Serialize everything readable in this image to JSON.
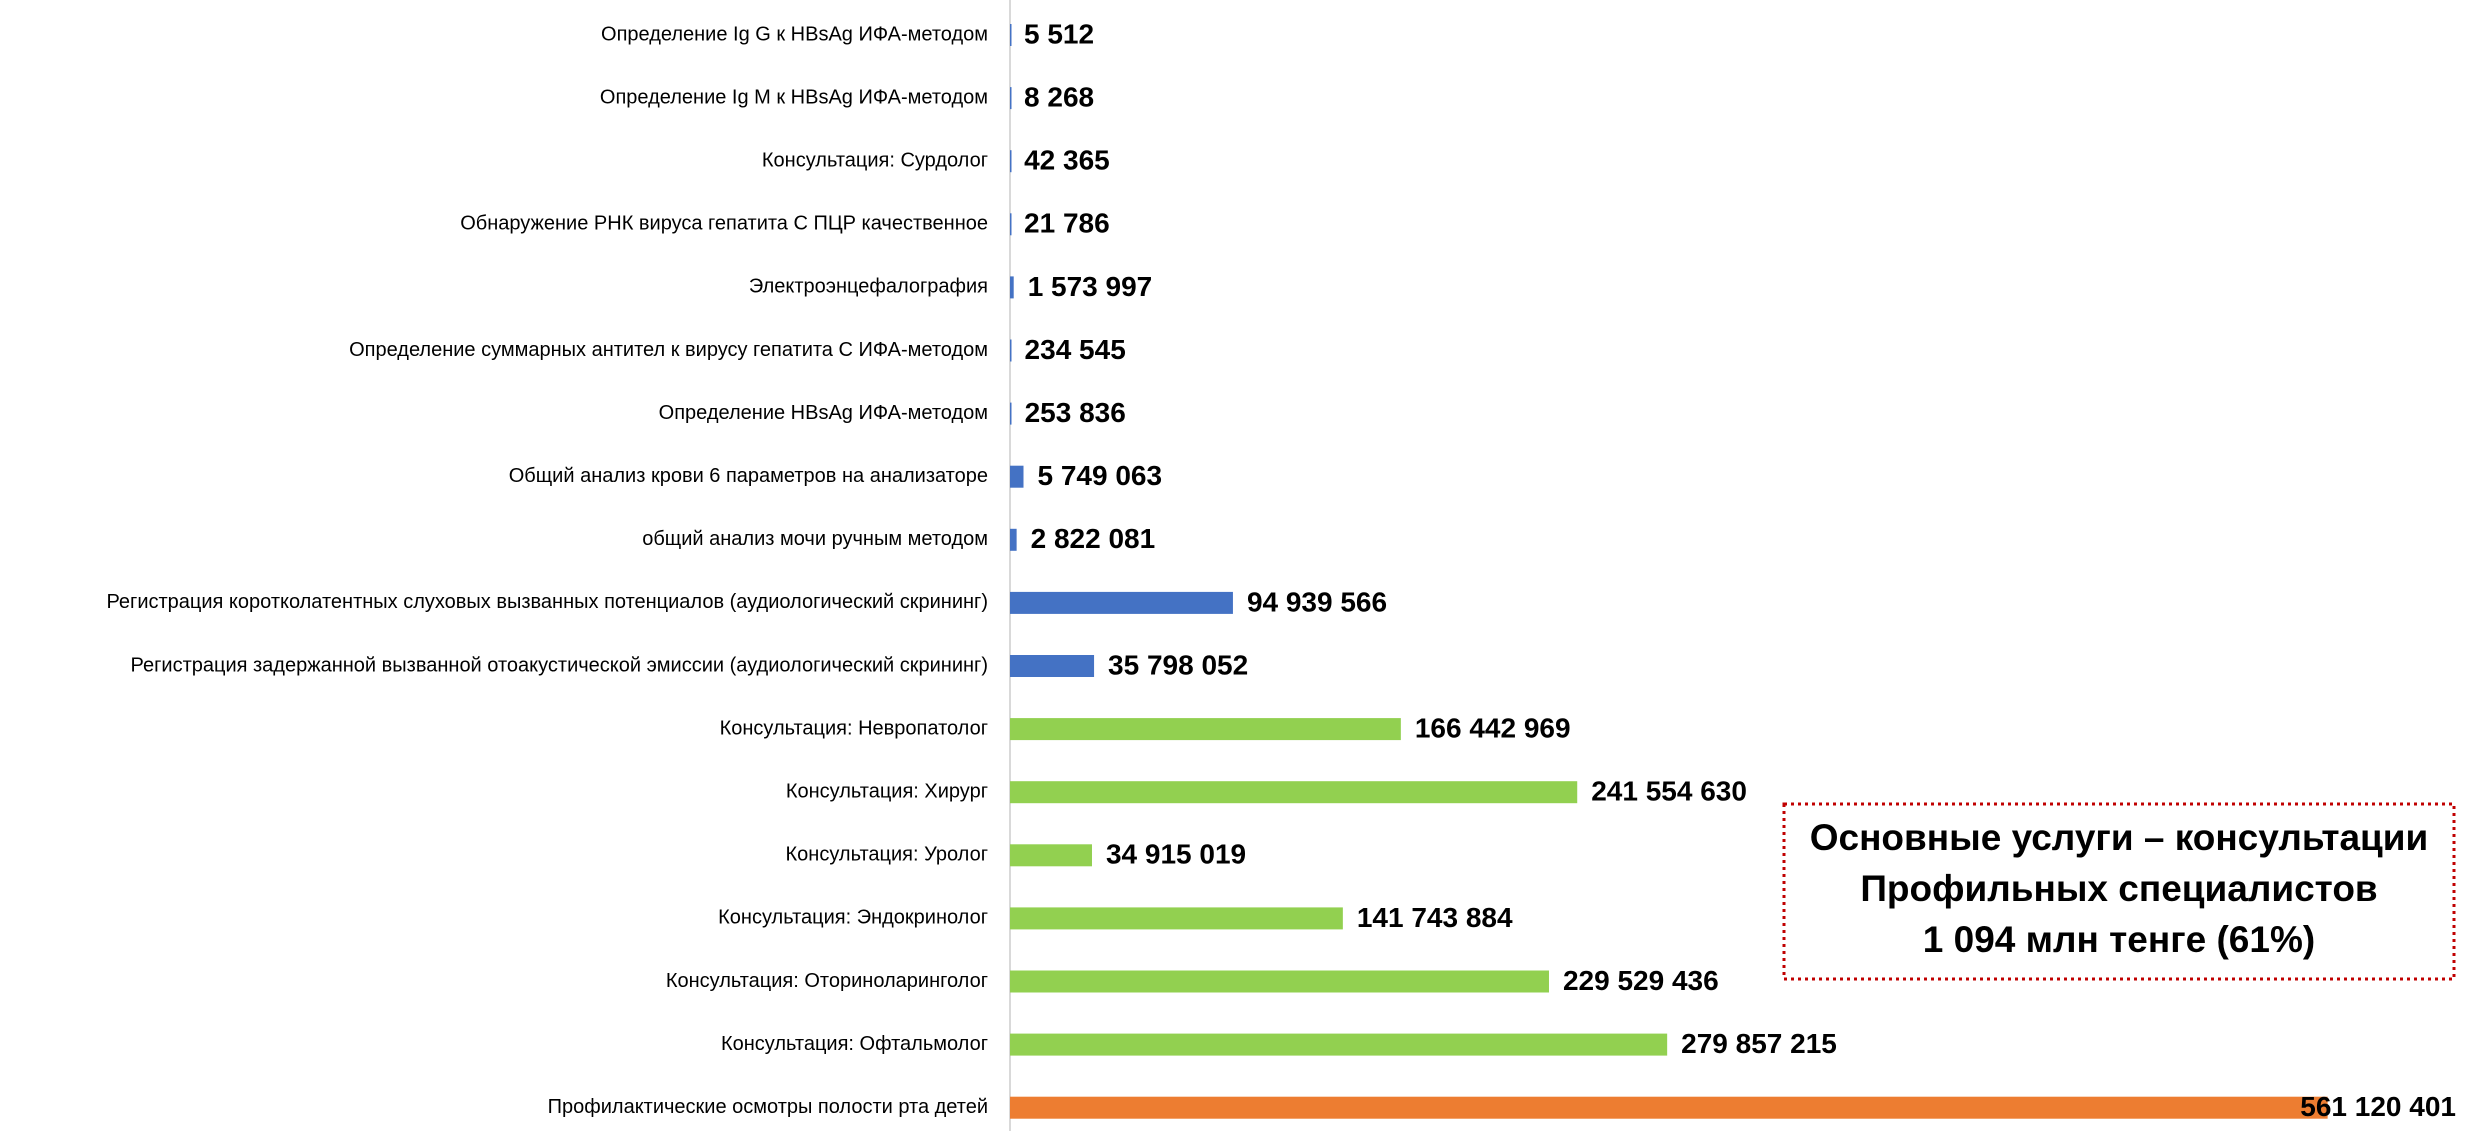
{
  "chart_data": {
    "type": "bar",
    "orientation": "horizontal",
    "categories": [
      "Определение Ig G к HBsAg ИФА-методом",
      "Определение Ig M к HBsAg ИФА-методом",
      "Консультация: Сурдолог",
      "Обнаружение РНК вируса гепатита С  ПЦР качественное",
      "Электроэнцефалография",
      "Определение суммарных антител к вирусу гепатита С  ИФА-методом",
      "Определение HBsAg ИФА-методом",
      "Общий анализ крови 6 параметров на анализаторе",
      "общий анализ мочи ручным методом",
      "Регистрация коротколатентных слуховых вызванных потенциалов (аудиологический скрининг)",
      "Регистрация задержанной вызванной отоакустической эмиссии (аудиологический скрининг)",
      "Консультация: Невропатолог",
      "Консультация: Хирург",
      "Консультация: Уролог",
      "Консультация: Эндокринолог",
      "Консультация: Оториноларинголог",
      "Консультация: Офтальмолог",
      "Профилактические осмотры полости рта детей"
    ],
    "values": [
      5512,
      8268,
      42365,
      21786,
      1573997,
      234545,
      253836,
      5749063,
      2822081,
      94939566,
      35798052,
      166442969,
      241554630,
      34915019,
      141743884,
      229529436,
      279857215,
      561120401
    ],
    "value_labels": [
      "5 512",
      "8 268",
      "42 365",
      "21 786",
      "1 573 997",
      "234 545",
      "253 836",
      "5 749 063",
      "2 822 081",
      "94 939 566",
      "35 798 052",
      "166 442 969",
      "241 554 630",
      "34 915 019",
      "141 743 884",
      "229 529 436",
      "279 857 215",
      "561 120 401"
    ],
    "colors": [
      "#4472c4",
      "#4472c4",
      "#4472c4",
      "#4472c4",
      "#4472c4",
      "#4472c4",
      "#4472c4",
      "#4472c4",
      "#4472c4",
      "#4472c4",
      "#4472c4",
      "#92d050",
      "#92d050",
      "#92d050",
      "#92d050",
      "#92d050",
      "#92d050",
      "#ed7d31"
    ],
    "xlim": [
      0,
      560000000
    ],
    "annotation": [
      "Основные услуги – консультации",
      "Профильных специалистов",
      "1 094 млн тенге (61%)"
    ]
  }
}
